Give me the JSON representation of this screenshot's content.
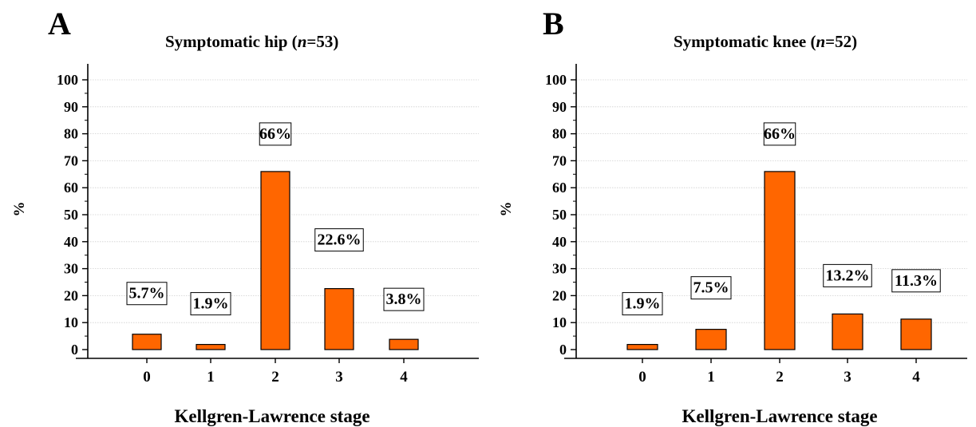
{
  "chart_data": [
    {
      "type": "bar",
      "panel_label": "A",
      "title": "Symptomatic hip (n=53)",
      "title_parts": {
        "before": "Symptomatic hip (",
        "italic": "n",
        "after": "=53)"
      },
      "categories": [
        "0",
        "1",
        "2",
        "3",
        "4"
      ],
      "values": [
        5.7,
        1.9,
        66,
        22.6,
        3.8
      ],
      "data_labels": [
        "5.7%",
        "1.9%",
        "66%",
        "22.6%",
        "3.8%"
      ],
      "xlabel": "Kellgren-Lawrence stage",
      "ylabel": "%",
      "ylim": [
        0,
        100
      ],
      "yticks": [
        "0",
        "10",
        "20",
        "30",
        "40",
        "50",
        "60",
        "70",
        "80",
        "90",
        "100"
      ],
      "grid": true,
      "bar_color": "#ff6600"
    },
    {
      "type": "bar",
      "panel_label": "B",
      "title": "Symptomatic knee (n=52)",
      "title_parts": {
        "before": "Symptomatic knee (",
        "italic": "n",
        "after": "=52)"
      },
      "categories": [
        "0",
        "1",
        "2",
        "3",
        "4"
      ],
      "values": [
        1.9,
        7.5,
        66,
        13.2,
        11.3
      ],
      "data_labels": [
        "1.9%",
        "7.5%",
        "66%",
        "13.2%",
        "11.3%"
      ],
      "xlabel": "Kellgren-Lawrence stage",
      "ylabel": "%",
      "ylim": [
        0,
        100
      ],
      "yticks": [
        "0",
        "10",
        "20",
        "30",
        "40",
        "50",
        "60",
        "70",
        "80",
        "90",
        "100"
      ],
      "grid": true,
      "bar_color": "#ff6600"
    }
  ]
}
